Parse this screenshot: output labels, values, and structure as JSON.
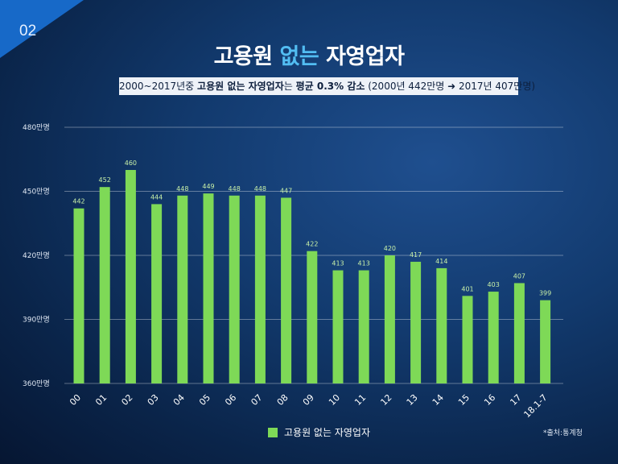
{
  "page": {
    "number": "02",
    "title_main": "고용원 ",
    "title_accent": "없는",
    "title_rest": " 자영업자",
    "subtitle": {
      "part1": "2000~2017년중 ",
      "bold1": "고용원 없는 자영업자",
      "part2": "는 ",
      "bold2": "평균 0.3% 감소",
      "part3": " (2000년 442만명 ➜ 2017년 407만명)"
    },
    "source": "*출처:통계청"
  },
  "colors": {
    "bar": "#7ed957",
    "label": "#c8f0a8",
    "axis": "#dfe7f3"
  },
  "chart_data": {
    "type": "bar",
    "categories": [
      "00",
      "01",
      "02",
      "03",
      "04",
      "05",
      "06",
      "07",
      "08",
      "09",
      "10",
      "11",
      "12",
      "13",
      "14",
      "15",
      "16",
      "17",
      "18.1-7"
    ],
    "series": [
      {
        "name": "고용원 없는 자영업자",
        "values": [
          442,
          452,
          460,
          444,
          448,
          449,
          448,
          448,
          447,
          422,
          413,
          413,
          420,
          417,
          414,
          401,
          403,
          407,
          399
        ]
      }
    ],
    "ylim": [
      360,
      480
    ],
    "yticks": [
      360,
      390,
      420,
      450,
      480
    ],
    "ytick_labels": [
      "360만명",
      "390만명",
      "420만명",
      "450만명",
      "480만명"
    ],
    "grid": true,
    "legend": "bottom-center"
  }
}
